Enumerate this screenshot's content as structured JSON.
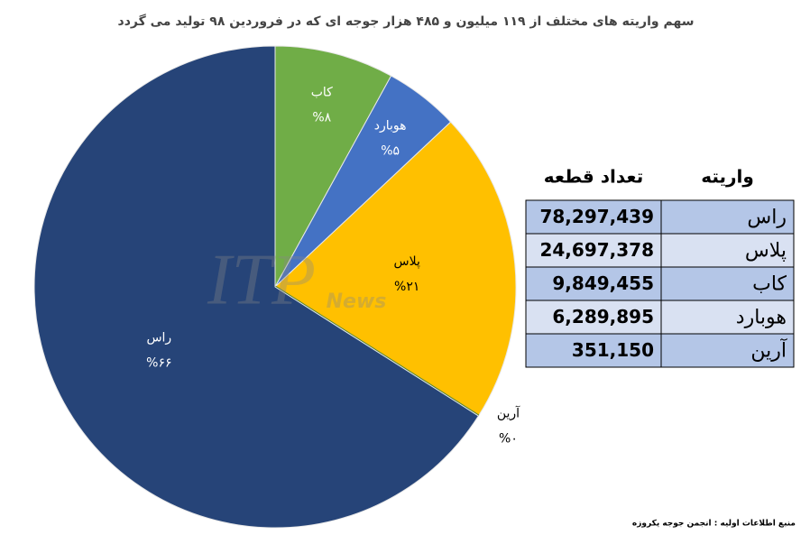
{
  "chart_data": {
    "type": "pie",
    "title": "سهم واریته های مختلف از ۱۱۹ میلیون و ۴۸۵ هزار جوجه ای که در فروردین ۹۸ تولید می گردد",
    "categories": [
      "کاب",
      "هوبارد",
      "پلاس",
      "آرین",
      "راس"
    ],
    "values": [
      8,
      5,
      21,
      0,
      66
    ],
    "value_labels": [
      "%۸",
      "%۵",
      "%۲۱",
      "%۰",
      "%۶۶"
    ],
    "colors": [
      "#70ad47",
      "#4472c4",
      "#ffc000",
      "#548235",
      "#264478"
    ]
  },
  "table": {
    "header": [
      "واریته",
      "تعداد قطعه"
    ],
    "rows": [
      [
        "راس",
        "78,297,439"
      ],
      [
        "پلاس",
        "24,697,378"
      ],
      [
        "کاب",
        "9,849,455"
      ],
      [
        "هوبارد",
        "6,289,895"
      ],
      [
        "آرین",
        "351,150"
      ]
    ]
  },
  "watermark": [
    "ITP",
    "News"
  ],
  "source": "منبع اطلاعات اولیه : انجمن جوجه یکروزه"
}
